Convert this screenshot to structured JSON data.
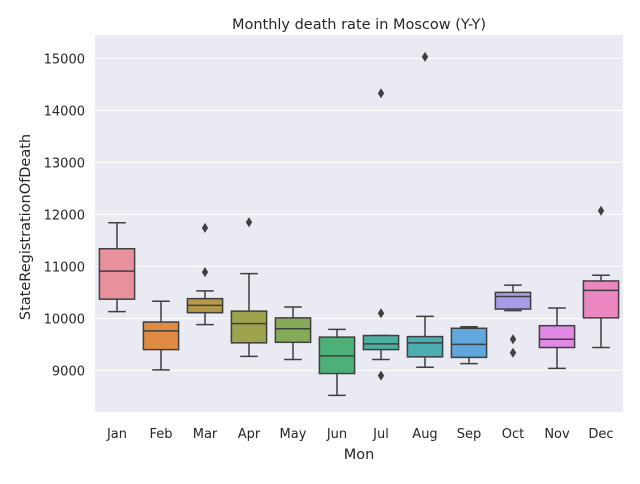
{
  "chart_data": {
    "type": "box",
    "title": "Monthly death rate in Moscow (Y-Y)",
    "xlabel": "Mon",
    "ylabel": "StateRegistrationOfDeath",
    "categories": [
      "Jan",
      "Feb",
      "Mar",
      "Apr",
      "May",
      "Jun",
      "Jul",
      "Aug",
      "Sep",
      "Oct",
      "Nov",
      "Dec"
    ],
    "yticks": [
      "9000",
      "10000",
      "11000",
      "12000",
      "13000",
      "14000",
      "15000"
    ],
    "ylim": [
      8200,
      15450
    ],
    "grid": true,
    "boxes": [
      {
        "month": "Jan",
        "whisker_low": 10130,
        "q1": 10370,
        "median": 10910,
        "q3": 11340,
        "whisker_high": 11840,
        "outliers": [],
        "color": "#e8909c"
      },
      {
        "month": "Feb",
        "whisker_low": 9010,
        "q1": 9400,
        "median": 9760,
        "q3": 9930,
        "whisker_high": 10330,
        "outliers": [],
        "color": "#e08b44"
      },
      {
        "month": "Mar",
        "whisker_low": 9880,
        "q1": 10110,
        "median": 10250,
        "q3": 10380,
        "whisker_high": 10530,
        "outliers": [
          10890,
          11740
        ],
        "color": "#b5994a"
      },
      {
        "month": "Apr",
        "whisker_low": 9270,
        "q1": 9530,
        "median": 9900,
        "q3": 10140,
        "whisker_high": 10860,
        "outliers": [
          11850
        ],
        "color": "#9ea44d"
      },
      {
        "month": "May",
        "whisker_low": 9210,
        "q1": 9540,
        "median": 9800,
        "q3": 10010,
        "whisker_high": 10220,
        "outliers": [],
        "color": "#86ab58"
      },
      {
        "month": "Jun",
        "whisker_low": 8520,
        "q1": 8940,
        "median": 9280,
        "q3": 9640,
        "whisker_high": 9790,
        "outliers": [],
        "color": "#4db177"
      },
      {
        "month": "Jul",
        "whisker_low": 9210,
        "q1": 9400,
        "median": 9510,
        "q3": 9670,
        "whisker_high": 9670,
        "outliers": [
          8900,
          10100,
          14330
        ],
        "color": "#4cae9f"
      },
      {
        "month": "Aug",
        "whisker_low": 9060,
        "q1": 9260,
        "median": 9530,
        "q3": 9650,
        "whisker_high": 10040,
        "outliers": [
          15030
        ],
        "color": "#4caeb3"
      },
      {
        "month": "Sep",
        "whisker_low": 9130,
        "q1": 9250,
        "median": 9500,
        "q3": 9810,
        "whisker_high": 9840,
        "outliers": [],
        "color": "#5fa7dd"
      },
      {
        "month": "Oct",
        "whisker_low": 10150,
        "q1": 10180,
        "median": 10420,
        "q3": 10500,
        "whisker_high": 10640,
        "outliers": [
          9340,
          9600
        ],
        "color": "#a89ce8"
      },
      {
        "month": "Nov",
        "whisker_low": 9040,
        "q1": 9440,
        "median": 9600,
        "q3": 9860,
        "whisker_high": 10200,
        "outliers": [],
        "color": "#e088e3"
      },
      {
        "month": "Dec",
        "whisker_low": 9440,
        "q1": 10010,
        "median": 10540,
        "q3": 10720,
        "whisker_high": 10830,
        "outliers": [
          12070
        ],
        "color": "#eb86c0"
      }
    ]
  }
}
